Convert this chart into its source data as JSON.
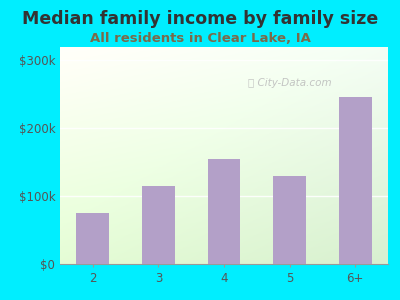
{
  "title": "Median family income by family size",
  "subtitle": "All residents in Clear Lake, IA",
  "categories": [
    "2",
    "3",
    "4",
    "5",
    "6+"
  ],
  "values": [
    75000,
    115000,
    155000,
    130000,
    245000
  ],
  "bar_color": "#b3a0c8",
  "title_color": "#333333",
  "subtitle_color": "#7a6a4a",
  "background_outer": "#00eeff",
  "yticks": [
    0,
    100000,
    200000,
    300000
  ],
  "ytick_labels": [
    "$0",
    "$100k",
    "$200k",
    "$300k"
  ],
  "ylim": [
    0,
    320000
  ],
  "title_fontsize": 12.5,
  "subtitle_fontsize": 9.5,
  "tick_fontsize": 8.5,
  "watermark": "City-Data.com"
}
